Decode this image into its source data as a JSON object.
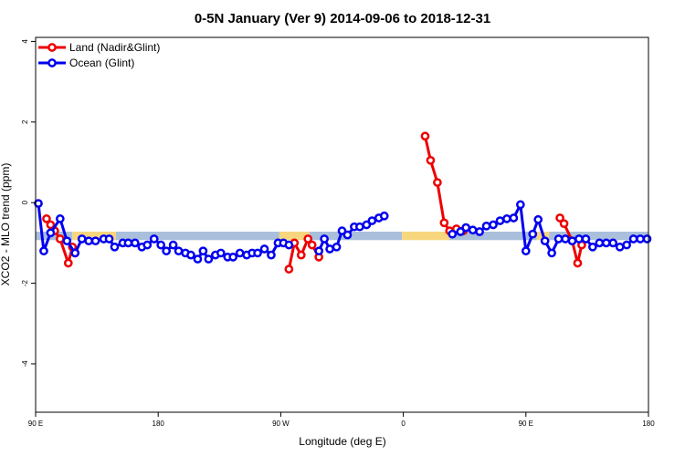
{
  "chart_data": {
    "type": "line",
    "title": "0-5N January (Ver 9)   2014-09-06 to 2018-12-31",
    "xlabel": "Longitude (deg E)",
    "ylabel": "XCO2 - MLO trend (ppm)",
    "xlim": [
      90,
      540
    ],
    "ylim": [
      -5.2,
      4.1
    ],
    "x_ticks": [
      {
        "value": 90,
        "label": "90 E"
      },
      {
        "value": 180,
        "label": "180"
      },
      {
        "value": 270,
        "label": "90 W"
      },
      {
        "value": 360,
        "label": "0"
      },
      {
        "value": 450,
        "label": "90 E"
      },
      {
        "value": 540,
        "label": "180"
      }
    ],
    "y_ticks": [
      {
        "value": 4,
        "label": "4"
      },
      {
        "value": 2,
        "label": "2"
      },
      {
        "value": 0,
        "label": "0"
      },
      {
        "value": -2,
        "label": "-2"
      },
      {
        "value": -4,
        "label": "-4"
      }
    ],
    "legend": {
      "position": "top-left"
    },
    "bands": [
      {
        "x0": 90,
        "x1": 117,
        "y0": -0.93,
        "y1": -0.72,
        "color": "#a9bfdb"
      },
      {
        "x0": 117,
        "x1": 149,
        "y0": -0.93,
        "y1": -0.72,
        "color": "#f7d67e"
      },
      {
        "x0": 149,
        "x1": 269,
        "y0": -0.93,
        "y1": -0.72,
        "color": "#a9bfdb"
      },
      {
        "x0": 269,
        "x1": 291,
        "y0": -0.93,
        "y1": -0.72,
        "color": "#f7d67e"
      },
      {
        "x0": 291,
        "x1": 359,
        "y0": -0.93,
        "y1": -0.72,
        "color": "#a9bfdb"
      },
      {
        "x0": 359,
        "x1": 394,
        "y0": -0.93,
        "y1": -0.72,
        "color": "#f7d67e"
      },
      {
        "x0": 394,
        "x1": 458,
        "y0": -0.93,
        "y1": -0.72,
        "color": "#a9bfdb"
      },
      {
        "x0": 458,
        "x1": 467,
        "y0": -0.93,
        "y1": -0.72,
        "color": "#f7d67e"
      },
      {
        "x0": 467,
        "x1": 540,
        "y0": -0.93,
        "y1": -0.72,
        "color": "#a9bfdb"
      }
    ],
    "series": [
      {
        "name": "Land (Nadir&Glint)",
        "color": "#ee0000",
        "segments": [
          {
            "x": [
              98,
              101,
              104,
              108,
              114,
              117,
              119
            ],
            "y": [
              -0.4,
              -0.55,
              -0.7,
              -0.9,
              -1.5,
              -1.1,
              -1.25
            ]
          },
          {
            "x": [
              276,
              280,
              285,
              290,
              293,
              298
            ],
            "y": [
              -1.65,
              -1.0,
              -1.3,
              -0.9,
              -1.05,
              -1.35
            ]
          },
          {
            "x": [
              376,
              380,
              385,
              390,
              394,
              399,
              404
            ],
            "y": [
              1.65,
              1.05,
              0.5,
              -0.5,
              -0.7,
              -0.65,
              -0.7
            ]
          },
          {
            "x": [
              475,
              478,
              484,
              488,
              491
            ],
            "y": [
              -0.38,
              -0.52,
              -0.95,
              -1.5,
              -1.05
            ]
          }
        ]
      },
      {
        "name": "Ocean (Glint)",
        "color": "#0000ee",
        "segments": [
          {
            "x": [
              92,
              96,
              101,
              108,
              113,
              119,
              124,
              129,
              134,
              140,
              144,
              148,
              154,
              158,
              163,
              168,
              172,
              177,
              182,
              186,
              191,
              195,
              200,
              204,
              209,
              213,
              217,
              222,
              226,
              231,
              235,
              240,
              245,
              249,
              253,
              258,
              263,
              268,
              272,
              276
            ],
            "y": [
              -0.02,
              -1.2,
              -0.75,
              -0.4,
              -0.95,
              -1.25,
              -0.9,
              -0.95,
              -0.95,
              -0.9,
              -0.9,
              -1.1,
              -1.0,
              -1.0,
              -1.0,
              -1.1,
              -1.05,
              -0.9,
              -1.05,
              -1.2,
              -1.05,
              -1.2,
              -1.25,
              -1.3,
              -1.4,
              -1.2,
              -1.4,
              -1.3,
              -1.25,
              -1.35,
              -1.35,
              -1.25,
              -1.3,
              -1.25,
              -1.25,
              -1.15,
              -1.3,
              -1.0,
              -1.0,
              -1.05
            ]
          },
          {
            "x": [
              298,
              302,
              306,
              311,
              315,
              319,
              324,
              328,
              333,
              337,
              342,
              346,
              351,
              355
            ],
            "y": [
              -1.2,
              -0.9,
              -1.15,
              -1.1,
              -0.7,
              -0.8,
              -0.6,
              -0.6,
              -0.55,
              -0.45,
              -0.38,
              -0.33,
              null,
              null
            ]
          },
          {
            "x": [
              396,
              402,
              406,
              411,
              416,
              421,
              426,
              431,
              436,
              441,
              446,
              450,
              455,
              459,
              464,
              469,
              474,
              479,
              484,
              489,
              494,
              499,
              504,
              509,
              514,
              519,
              524,
              529,
              534,
              539
            ],
            "y": [
              -0.78,
              -0.72,
              -0.62,
              -0.68,
              -0.72,
              -0.58,
              -0.55,
              -0.45,
              -0.4,
              -0.38,
              -0.05,
              -1.2,
              -0.78,
              -0.42,
              -0.95,
              -1.25,
              -0.9,
              -0.9,
              -0.95,
              -0.9,
              -0.9,
              -1.1,
              -1.0,
              -1.0,
              -1.0,
              -1.1,
              -1.05,
              -0.9,
              -0.9,
              -0.9
            ]
          }
        ]
      }
    ]
  }
}
